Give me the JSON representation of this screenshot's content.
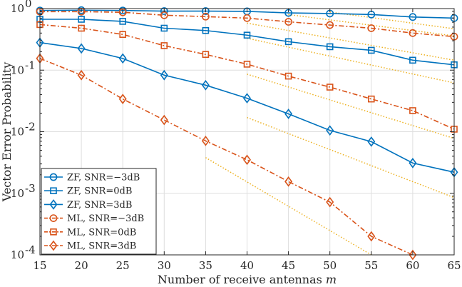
{
  "chart_data": {
    "type": "line",
    "xlabel": "Number of receive antennas m",
    "xlabel_plain": "Number of receive antennas ",
    "xlabel_var": "m",
    "ylabel": "Vector Error Probability",
    "x": [
      15,
      20,
      25,
      30,
      35,
      40,
      45,
      50,
      55,
      60,
      65
    ],
    "xlim": [
      15,
      65
    ],
    "ylim": [
      0.0001,
      1
    ],
    "yscale": "log",
    "x_ticks": [
      "15",
      "20",
      "25",
      "30",
      "35",
      "40",
      "45",
      "50",
      "55",
      "60",
      "65"
    ],
    "y_ticks": [
      {
        "value": 1,
        "base": "10",
        "exp": "0"
      },
      {
        "value": 0.1,
        "base": "10",
        "exp": "-1"
      },
      {
        "value": 0.01,
        "base": "10",
        "exp": "-2"
      },
      {
        "value": 0.001,
        "base": "10",
        "exp": "-3"
      },
      {
        "value": 0.0001,
        "base": "10",
        "exp": "-4"
      }
    ],
    "grid": true,
    "legend_position": "bottom-left",
    "series": [
      {
        "name": "ZF, SNR=−3dB",
        "color": "#0072BD",
        "marker": "circle",
        "dash": "solid",
        "values": [
          0.93,
          0.94,
          0.93,
          0.91,
          0.91,
          0.9,
          0.85,
          0.83,
          0.8,
          0.73,
          0.7
        ]
      },
      {
        "name": "ZF, SNR=0dB",
        "color": "#0072BD",
        "marker": "square",
        "dash": "solid",
        "values": [
          0.67,
          0.67,
          0.62,
          0.48,
          0.44,
          0.37,
          0.29,
          0.24,
          0.21,
          0.145,
          0.122
        ]
      },
      {
        "name": "ZF, SNR=3dB",
        "color": "#0072BD",
        "marker": "diamond",
        "dash": "solid",
        "values": [
          0.28,
          0.225,
          0.155,
          0.083,
          0.057,
          0.035,
          0.0195,
          0.0105,
          0.0069,
          0.0031,
          0.0022
        ]
      },
      {
        "name": "ML, SNR=−3dB",
        "color": "#D95319",
        "marker": "circle",
        "dash": "dashdot",
        "values": [
          0.89,
          0.89,
          0.87,
          0.78,
          0.74,
          0.7,
          0.61,
          0.54,
          0.48,
          0.4,
          0.35
        ]
      },
      {
        "name": "ML, SNR=0dB",
        "color": "#D95319",
        "marker": "square",
        "dash": "dashdot",
        "values": [
          0.55,
          0.48,
          0.38,
          0.25,
          0.18,
          0.125,
          0.08,
          0.053,
          0.034,
          0.022,
          0.011
        ]
      },
      {
        "name": "ML, SNR=3dB",
        "color": "#D95319",
        "marker": "diamond",
        "dash": "dashdot",
        "values": [
          0.155,
          0.083,
          0.034,
          0.0155,
          0.0071,
          0.0035,
          0.00155,
          0.00072,
          0.0002,
          0.0001,
          null
        ]
      }
    ],
    "reference_lines": {
      "color": "#EDB120",
      "dash": "dotted",
      "lines": [
        {
          "x": [
            50,
            65
          ],
          "y": [
            0.88,
            0.47
          ]
        },
        {
          "x": [
            45,
            65
          ],
          "y": [
            0.8,
            0.36
          ]
        },
        {
          "x": [
            40,
            65
          ],
          "y": [
            0.58,
            0.145
          ]
        },
        {
          "x": [
            40,
            65
          ],
          "y": [
            0.33,
            0.062
          ]
        },
        {
          "x": [
            40,
            65
          ],
          "y": [
            0.086,
            0.0078
          ]
        },
        {
          "x": [
            40,
            65
          ],
          "y": [
            0.017,
            0.00085
          ]
        },
        {
          "x": [
            35,
            55
          ],
          "y": [
            0.0038,
            0.0001
          ]
        }
      ]
    }
  }
}
